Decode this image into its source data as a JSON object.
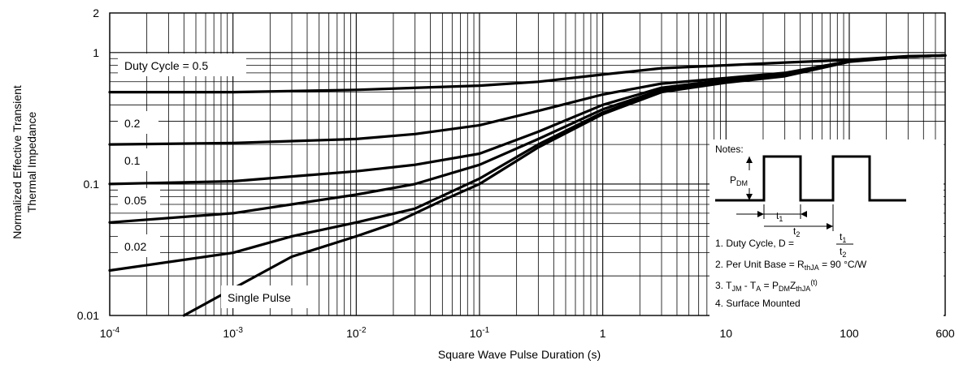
{
  "chart_data": {
    "type": "line",
    "title": "",
    "xlabel": "Square Wave Pulse Duration (s)",
    "ylabel_lines": [
      "Normalized Effective Transient",
      "Thermal Impedance"
    ],
    "x_scale": "log",
    "y_scale": "log",
    "xlim": [
      0.0001,
      600
    ],
    "ylim": [
      0.01,
      2
    ],
    "grid": true,
    "x_ticks": [
      {
        "value": 0.0001,
        "base": "10",
        "exp": "-4"
      },
      {
        "value": 0.001,
        "base": "10",
        "exp": "-3"
      },
      {
        "value": 0.01,
        "base": "10",
        "exp": "-2"
      },
      {
        "value": 0.1,
        "base": "10",
        "exp": "-1"
      },
      {
        "value": 1,
        "base": "1",
        "exp": ""
      },
      {
        "value": 10,
        "base": "10",
        "exp": ""
      },
      {
        "value": 100,
        "base": "100",
        "exp": ""
      },
      {
        "value": 600,
        "base": "600",
        "exp": ""
      }
    ],
    "y_ticks": [
      {
        "value": 0.01,
        "label": "0.01"
      },
      {
        "value": 0.1,
        "label": "0.1"
      },
      {
        "value": 1,
        "label": "1"
      },
      {
        "value": 2,
        "label": "2"
      }
    ],
    "series": [
      {
        "name": "Duty Cycle = 0.5",
        "x": [
          0.0001,
          0.001,
          0.01,
          0.1,
          0.3,
          1,
          3,
          10,
          30,
          100,
          300,
          600
        ],
        "y": [
          0.5,
          0.5,
          0.52,
          0.56,
          0.6,
          0.68,
          0.76,
          0.8,
          0.84,
          0.88,
          0.94,
          0.95
        ]
      },
      {
        "name": "0.2",
        "x": [
          0.0001,
          0.001,
          0.01,
          0.03,
          0.1,
          0.3,
          1,
          3,
          10,
          30,
          100,
          300,
          600
        ],
        "y": [
          0.2,
          0.205,
          0.22,
          0.24,
          0.28,
          0.36,
          0.48,
          0.58,
          0.64,
          0.7,
          0.86,
          0.93,
          0.95
        ]
      },
      {
        "name": "0.1",
        "x": [
          0.0001,
          0.001,
          0.01,
          0.03,
          0.1,
          0.3,
          1,
          3,
          10,
          30,
          100,
          300,
          600
        ],
        "y": [
          0.1,
          0.105,
          0.125,
          0.14,
          0.17,
          0.25,
          0.4,
          0.54,
          0.62,
          0.69,
          0.86,
          0.93,
          0.95
        ]
      },
      {
        "name": "0.05",
        "x": [
          0.0001,
          0.001,
          0.003,
          0.01,
          0.03,
          0.1,
          0.3,
          1,
          3,
          10,
          30,
          100,
          300,
          600
        ],
        "y": [
          0.051,
          0.06,
          0.07,
          0.083,
          0.1,
          0.14,
          0.22,
          0.37,
          0.52,
          0.61,
          0.68,
          0.86,
          0.93,
          0.95
        ]
      },
      {
        "name": "0.02",
        "x": [
          0.0001,
          0.001,
          0.003,
          0.01,
          0.03,
          0.1,
          0.3,
          1,
          3,
          10,
          30,
          100,
          300,
          600
        ],
        "y": [
          0.022,
          0.03,
          0.04,
          0.051,
          0.065,
          0.11,
          0.2,
          0.35,
          0.51,
          0.6,
          0.67,
          0.86,
          0.93,
          0.95
        ]
      },
      {
        "name": "Single Pulse",
        "x": [
          0.0004,
          0.001,
          0.003,
          0.01,
          0.02,
          0.05,
          0.1,
          0.3,
          1,
          3,
          10,
          30,
          100,
          300,
          600
        ],
        "y": [
          0.01,
          0.016,
          0.028,
          0.04,
          0.05,
          0.075,
          0.1,
          0.19,
          0.34,
          0.5,
          0.59,
          0.66,
          0.85,
          0.93,
          0.95
        ]
      }
    ],
    "series_labels": [
      {
        "series": 0,
        "text": "Duty Cycle = 0.5"
      },
      {
        "series": 1,
        "text": "0.2"
      },
      {
        "series": 2,
        "text": "0.1"
      },
      {
        "series": 3,
        "text": "0.05"
      },
      {
        "series": 4,
        "text": "0.02"
      },
      {
        "series": 5,
        "text": "Single Pulse"
      }
    ],
    "notes": {
      "heading": "Notes:",
      "pdm": {
        "main": "P",
        "sub": "DM"
      },
      "t1": {
        "main": "t",
        "sub": "1"
      },
      "t2": {
        "main": "t",
        "sub": "2"
      },
      "line1": {
        "text": "1. Duty Cycle, D =",
        "num_main": "t",
        "num_sub": "1",
        "den_main": "t",
        "den_sub": "2"
      },
      "line2": {
        "pre": "2. Per Unit Base = R",
        "sub": "thJA",
        "post": " = 90 °C/W"
      },
      "line3": {
        "p1": "3. T",
        "s1": "JM",
        "p2": " - T",
        "s2": "A",
        "p3": " = P",
        "s3": "DM",
        "p4": "Z",
        "s4": "thJA",
        "sup": "(t)"
      },
      "line4": "4. Surface Mounted"
    }
  }
}
